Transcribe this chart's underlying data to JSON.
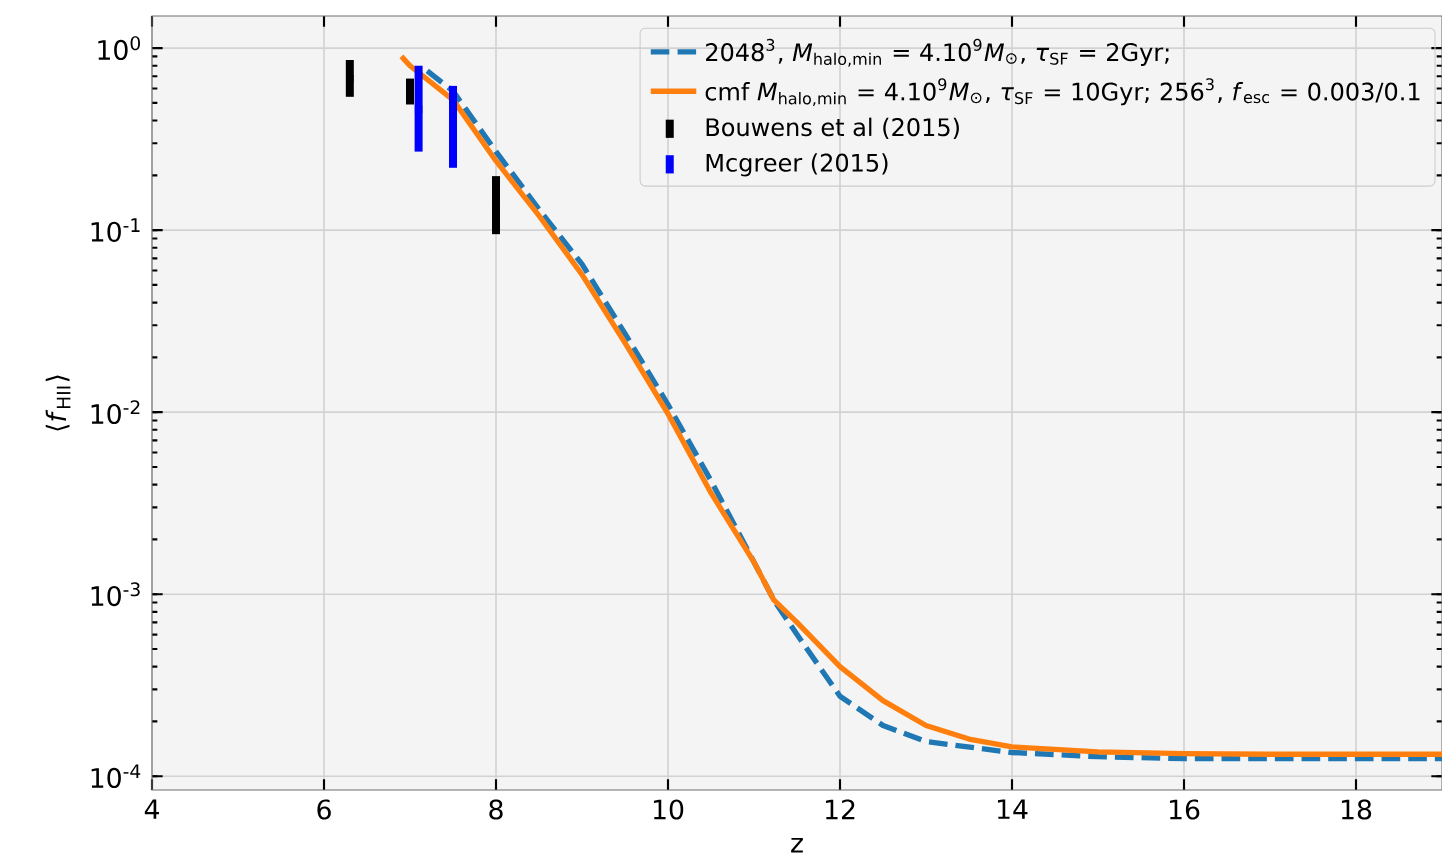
{
  "chart_data": {
    "type": "line",
    "xlabel": "z",
    "ylabel": "⟨*f*$_{HII}$⟩",
    "xlim": [
      4,
      19
    ],
    "ylim": [
      8.4e-05,
      1.5
    ],
    "log": "y",
    "grid": true,
    "legend": "top right",
    "xticks": [
      4,
      6,
      8,
      10,
      12,
      14,
      16,
      18
    ],
    "yticks": [
      {
        "value": 0.0001,
        "label": "10$^{-4}$"
      },
      {
        "value": 0.001,
        "label": "10$^{-3}$"
      },
      {
        "value": 0.01,
        "label": "10$^{-2}$"
      },
      {
        "value": 0.1,
        "label": "10$^{-1}$"
      },
      {
        "value": 1,
        "label": "10$^{0}$"
      }
    ],
    "series": [
      {
        "name": "2048$^{3}$, *M*$_{halo,min}$ = 4.10$^{9}$*M*$_{⊙}$, *τ*$_{SF}$ =  2Gyr;",
        "line_style": "dashed",
        "color": "#1f77b4",
        "x": [
          7.2,
          7.5,
          8,
          8.5,
          9,
          9.5,
          10,
          10.5,
          11,
          11.23,
          11.5,
          12,
          12.5,
          13,
          14,
          15,
          16,
          17,
          18,
          19
        ],
        "values": [
          0.75,
          0.58,
          0.27,
          0.13,
          0.065,
          0.027,
          0.011,
          0.0042,
          0.0015,
          0.00093,
          0.0006,
          0.000275,
          0.00019,
          0.000155,
          0.000135,
          0.000128,
          0.000125,
          0.000125,
          0.000125,
          0.000125
        ]
      },
      {
        "name": "cmf *M*$_{halo,min}$ = 4.10$^{9}$*M*$_{⊙}$, *τ*$_{SF}$ =  10Gyr; 256$^{3}$, *f*$_{esc}$ = 0.003/0.1",
        "line_style": "solid",
        "color": "#ff7f0e",
        "x": [
          6.9,
          7,
          7.5,
          8,
          8.5,
          9,
          9.5,
          10,
          10.5,
          11,
          11.23,
          11.5,
          12,
          12.5,
          13,
          13.5,
          14,
          15,
          16,
          17,
          18,
          19
        ],
        "values": [
          0.9,
          0.8,
          0.52,
          0.24,
          0.12,
          0.057,
          0.024,
          0.0098,
          0.0036,
          0.0015,
          0.00093,
          0.0007,
          0.0004,
          0.00026,
          0.00019,
          0.00016,
          0.000145,
          0.000136,
          0.000133,
          0.000132,
          0.000132,
          0.000132
        ]
      },
      {
        "name": "Bouwens et al (2015)",
        "type": "scatter",
        "marker": "square",
        "color": "#000000",
        "x": [
          6.3,
          7.0,
          8.0
        ],
        "values": [
          0.68,
          0.58,
          0.14
        ],
        "errors": [
          [
            0.54,
            0.86
          ],
          [
            0.49,
            0.68
          ],
          [
            0.095,
            0.198
          ]
        ]
      },
      {
        "name": "Mcgreer (2015)",
        "type": "scatter",
        "marker": "square",
        "color": "#0000ff",
        "x": [
          7.1,
          7.5
        ],
        "values": [
          0.46,
          0.37
        ],
        "errors": [
          [
            0.27,
            0.8
          ],
          [
            0.22,
            0.62
          ]
        ]
      }
    ]
  }
}
